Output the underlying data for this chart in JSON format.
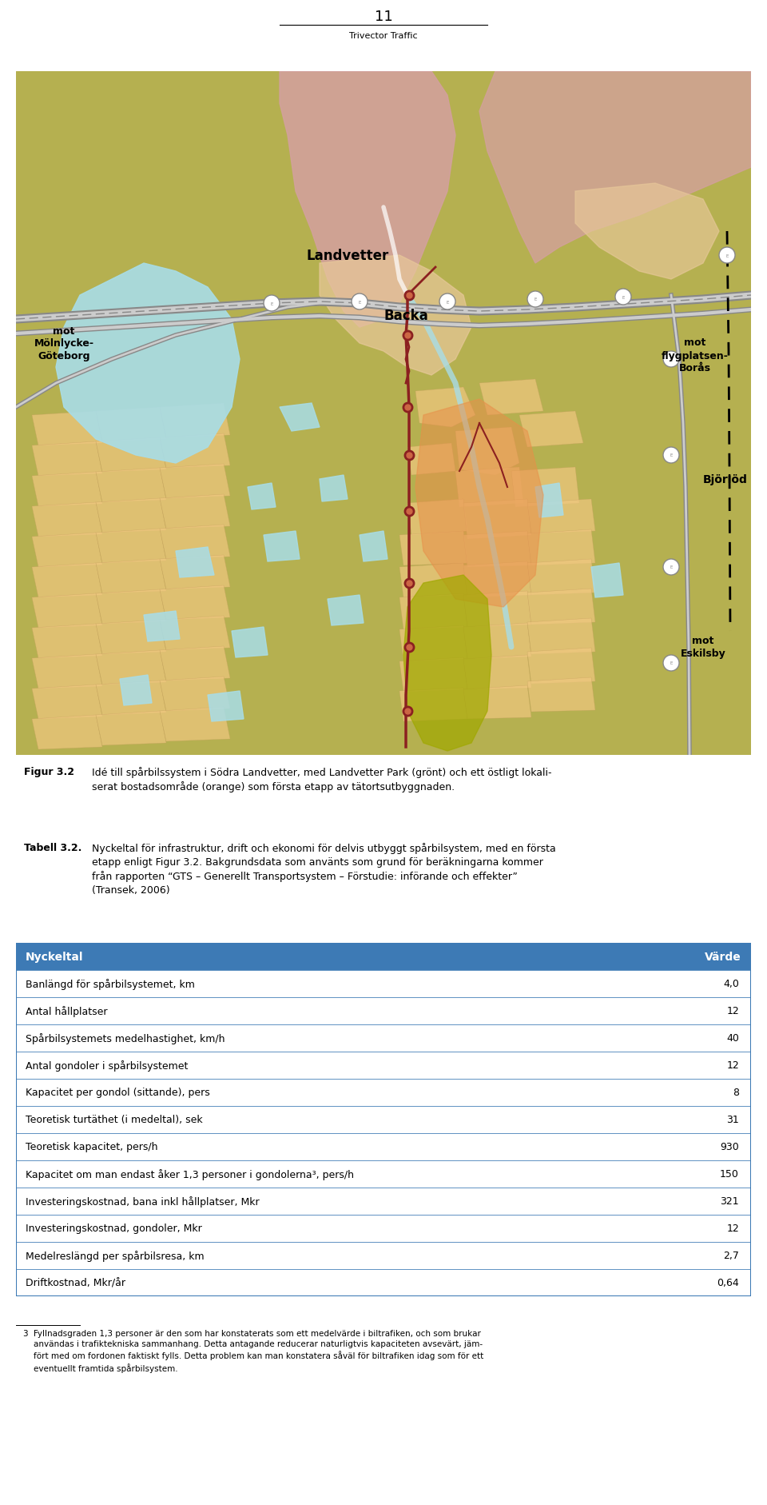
{
  "page_number": "11",
  "page_footer": "Trivector Traffic",
  "table_header_bg": "#3d7ab5",
  "table_header_text_color": "#ffffff",
  "table_border_color": "#3d7ab5",
  "table_rows": [
    [
      "Banlängd för spårbilsystemet, km",
      "4,0"
    ],
    [
      "Antal hållplatser",
      "12"
    ],
    [
      "Spårbilsystemets medelhastighet, km/h",
      "40"
    ],
    [
      "Antal gondoler i spårbilsystemet",
      "12"
    ],
    [
      "Kapacitet per gondol (sittande), pers",
      "8"
    ],
    [
      "Teoretisk turtäthet (i medeltal), sek",
      "31"
    ],
    [
      "Teoretisk kapacitet, pers/h",
      "930"
    ],
    [
      "Kapacitet om man endast åker 1,3 personer i gondolerna³, pers/h",
      "150"
    ],
    [
      "Investeringskostnad, bana inkl hållplatser, Mkr",
      "321"
    ],
    [
      "Investeringskostnad, gondoler, Mkr",
      "12"
    ],
    [
      "Medelreslängd per spårbilsresa, km",
      "2,7"
    ],
    [
      "Driftkostnad, Mkr/år",
      "0,64"
    ]
  ],
  "map_bg": "#b5b050",
  "map_forest_bg": "#b5b050",
  "map_urban_pink": "#d4a0a0",
  "map_urban_beige": "#e8c89a",
  "map_tan": "#deb887",
  "map_water": "#a8dde8",
  "map_road_gray": "#a0a0a0",
  "map_road_yellow": "#e8d080",
  "map_orange_zone": "#e8904a",
  "map_green_zone": "#a0a800",
  "map_route": "#8B2020",
  "map_river": "#a8dde8",
  "map_hatch_tan": "#f0c880",
  "fig_width": 9.6,
  "fig_height": 18.83
}
